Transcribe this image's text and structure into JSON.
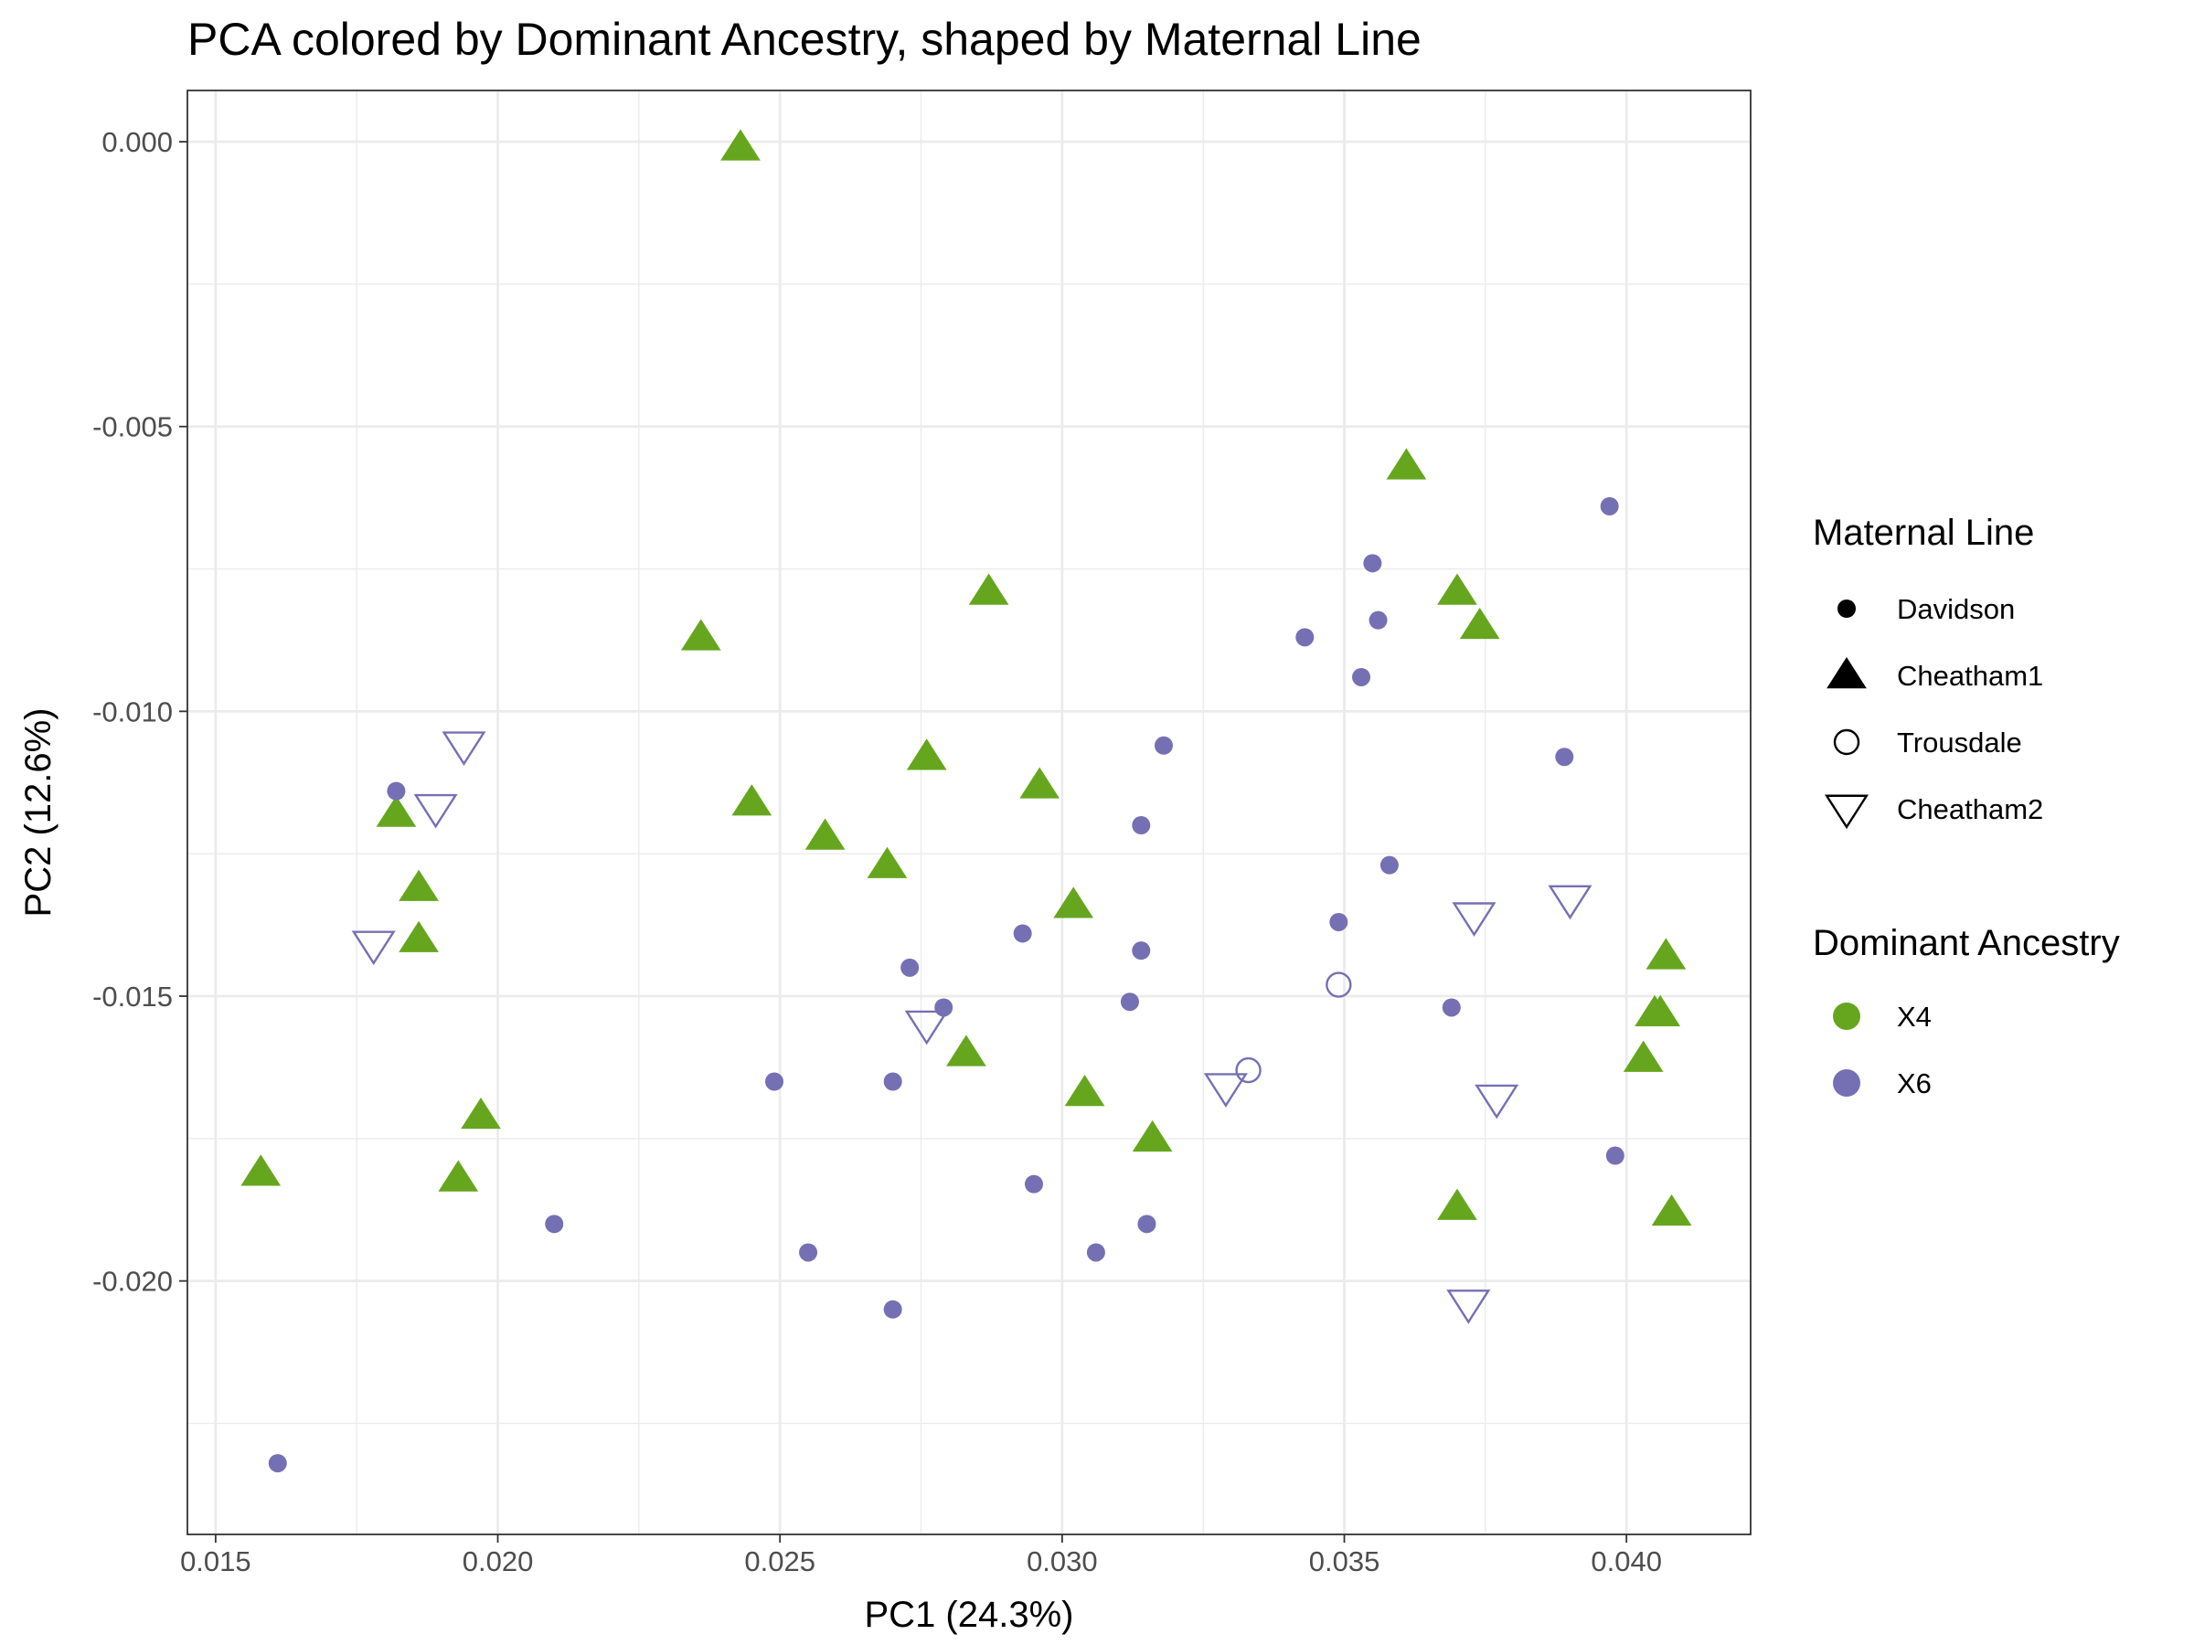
{
  "chart_data": {
    "type": "scatter",
    "title": "PCA colored by Dominant Ancestry, shaped by Maternal Line",
    "xlabel": "PC1 (24.3%)",
    "ylabel": "PC2 (12.6%)",
    "xlim": [
      0.0145,
      0.0422
    ],
    "ylim": [
      -0.02445,
      0.0009
    ],
    "x_ticks": [
      0.015,
      0.02,
      0.025,
      0.03,
      0.035,
      0.04
    ],
    "x_tick_labels": [
      "0.015",
      "0.020",
      "0.025",
      "0.030",
      "0.035",
      "0.040"
    ],
    "y_ticks": [
      0.0,
      -0.005,
      -0.01,
      -0.015,
      -0.02
    ],
    "y_tick_labels": [
      "0.000",
      "-0.005",
      "-0.010",
      "-0.015",
      "-0.020"
    ],
    "grid": true,
    "colors": {
      "X4": "#66a61e",
      "X6": "#7570b3"
    },
    "legend_shape": {
      "title": "Maternal Line",
      "entries": [
        {
          "label": "Davidson",
          "shape": "circle-filled"
        },
        {
          "label": "Cheatham1",
          "shape": "triangle-up-filled"
        },
        {
          "label": "Trousdale",
          "shape": "circle-open"
        },
        {
          "label": "Cheatham2",
          "shape": "triangle-down-open"
        }
      ]
    },
    "legend_color": {
      "title": "Dominant Ancestry",
      "entries": [
        {
          "label": "X4",
          "color": "#66a61e"
        },
        {
          "label": "X6",
          "color": "#7570b3"
        }
      ]
    },
    "legend_position": "right",
    "points": [
      {
        "x": 0.0243,
        "y": -0.0001,
        "shape": "Cheatham1",
        "ancestry": "X4"
      },
      {
        "x": 0.0361,
        "y": -0.0057,
        "shape": "Cheatham1",
        "ancestry": "X4"
      },
      {
        "x": 0.0287,
        "y": -0.0079,
        "shape": "Cheatham1",
        "ancestry": "X4"
      },
      {
        "x": 0.037,
        "y": -0.0079,
        "shape": "Cheatham1",
        "ancestry": "X4"
      },
      {
        "x": 0.0374,
        "y": -0.0085,
        "shape": "Cheatham1",
        "ancestry": "X4"
      },
      {
        "x": 0.0236,
        "y": -0.0087,
        "shape": "Cheatham1",
        "ancestry": "X4"
      },
      {
        "x": 0.0276,
        "y": -0.0108,
        "shape": "Cheatham1",
        "ancestry": "X4"
      },
      {
        "x": 0.0296,
        "y": -0.0113,
        "shape": "Cheatham1",
        "ancestry": "X4"
      },
      {
        "x": 0.0245,
        "y": -0.0116,
        "shape": "Cheatham1",
        "ancestry": "X4"
      },
      {
        "x": 0.0182,
        "y": -0.0118,
        "shape": "Cheatham1",
        "ancestry": "X4"
      },
      {
        "x": 0.0258,
        "y": -0.0122,
        "shape": "Cheatham1",
        "ancestry": "X4"
      },
      {
        "x": 0.0269,
        "y": -0.0127,
        "shape": "Cheatham1",
        "ancestry": "X4"
      },
      {
        "x": 0.0186,
        "y": -0.0131,
        "shape": "Cheatham1",
        "ancestry": "X4"
      },
      {
        "x": 0.0302,
        "y": -0.0134,
        "shape": "Cheatham1",
        "ancestry": "X4"
      },
      {
        "x": 0.0186,
        "y": -0.014,
        "shape": "Cheatham1",
        "ancestry": "X4"
      },
      {
        "x": 0.0407,
        "y": -0.0143,
        "shape": "Cheatham1",
        "ancestry": "X4"
      },
      {
        "x": 0.0406,
        "y": -0.0153,
        "shape": "Cheatham1",
        "ancestry": "X4"
      },
      {
        "x": 0.0405,
        "y": -0.0153,
        "shape": "Cheatham1",
        "ancestry": "X4"
      },
      {
        "x": 0.0283,
        "y": -0.016,
        "shape": "Cheatham1",
        "ancestry": "X4"
      },
      {
        "x": 0.0403,
        "y": -0.0161,
        "shape": "Cheatham1",
        "ancestry": "X4"
      },
      {
        "x": 0.0304,
        "y": -0.0167,
        "shape": "Cheatham1",
        "ancestry": "X4"
      },
      {
        "x": 0.0197,
        "y": -0.0171,
        "shape": "Cheatham1",
        "ancestry": "X4"
      },
      {
        "x": 0.0316,
        "y": -0.0175,
        "shape": "Cheatham1",
        "ancestry": "X4"
      },
      {
        "x": 0.0158,
        "y": -0.0181,
        "shape": "Cheatham1",
        "ancestry": "X4"
      },
      {
        "x": 0.0193,
        "y": -0.0182,
        "shape": "Cheatham1",
        "ancestry": "X4"
      },
      {
        "x": 0.037,
        "y": -0.0187,
        "shape": "Cheatham1",
        "ancestry": "X4"
      },
      {
        "x": 0.0408,
        "y": -0.0188,
        "shape": "Cheatham1",
        "ancestry": "X4"
      },
      {
        "x": 0.0397,
        "y": -0.0064,
        "shape": "Davidson",
        "ancestry": "X6"
      },
      {
        "x": 0.0355,
        "y": -0.0074,
        "shape": "Davidson",
        "ancestry": "X6"
      },
      {
        "x": 0.0356,
        "y": -0.0084,
        "shape": "Davidson",
        "ancestry": "X6"
      },
      {
        "x": 0.0343,
        "y": -0.0087,
        "shape": "Davidson",
        "ancestry": "X6"
      },
      {
        "x": 0.0353,
        "y": -0.0094,
        "shape": "Davidson",
        "ancestry": "X6"
      },
      {
        "x": 0.0318,
        "y": -0.0106,
        "shape": "Davidson",
        "ancestry": "X6"
      },
      {
        "x": 0.0389,
        "y": -0.0108,
        "shape": "Davidson",
        "ancestry": "X6"
      },
      {
        "x": 0.0182,
        "y": -0.0114,
        "shape": "Davidson",
        "ancestry": "X6"
      },
      {
        "x": 0.0314,
        "y": -0.012,
        "shape": "Davidson",
        "ancestry": "X6"
      },
      {
        "x": 0.0358,
        "y": -0.0127,
        "shape": "Davidson",
        "ancestry": "X6"
      },
      {
        "x": 0.0349,
        "y": -0.0137,
        "shape": "Davidson",
        "ancestry": "X6"
      },
      {
        "x": 0.0293,
        "y": -0.0139,
        "shape": "Davidson",
        "ancestry": "X6"
      },
      {
        "x": 0.0314,
        "y": -0.0142,
        "shape": "Davidson",
        "ancestry": "X6"
      },
      {
        "x": 0.0273,
        "y": -0.0145,
        "shape": "Davidson",
        "ancestry": "X6"
      },
      {
        "x": 0.0312,
        "y": -0.0151,
        "shape": "Davidson",
        "ancestry": "X6"
      },
      {
        "x": 0.0279,
        "y": -0.0152,
        "shape": "Davidson",
        "ancestry": "X6"
      },
      {
        "x": 0.0369,
        "y": -0.0152,
        "shape": "Davidson",
        "ancestry": "X6"
      },
      {
        "x": 0.027,
        "y": -0.0165,
        "shape": "Davidson",
        "ancestry": "X6"
      },
      {
        "x": 0.0249,
        "y": -0.0165,
        "shape": "Davidson",
        "ancestry": "X6"
      },
      {
        "x": 0.0398,
        "y": -0.0178,
        "shape": "Davidson",
        "ancestry": "X6"
      },
      {
        "x": 0.0295,
        "y": -0.0183,
        "shape": "Davidson",
        "ancestry": "X6"
      },
      {
        "x": 0.0315,
        "y": -0.019,
        "shape": "Davidson",
        "ancestry": "X6"
      },
      {
        "x": 0.021,
        "y": -0.019,
        "shape": "Davidson",
        "ancestry": "X6"
      },
      {
        "x": 0.0255,
        "y": -0.0195,
        "shape": "Davidson",
        "ancestry": "X6"
      },
      {
        "x": 0.0306,
        "y": -0.0195,
        "shape": "Davidson",
        "ancestry": "X6"
      },
      {
        "x": 0.027,
        "y": -0.0205,
        "shape": "Davidson",
        "ancestry": "X6"
      },
      {
        "x": 0.0161,
        "y": -0.0232,
        "shape": "Davidson",
        "ancestry": "X6"
      },
      {
        "x": 0.0349,
        "y": -0.0148,
        "shape": "Trousdale",
        "ancestry": "X6"
      },
      {
        "x": 0.0333,
        "y": -0.0163,
        "shape": "Trousdale",
        "ancestry": "X6"
      },
      {
        "x": 0.0194,
        "y": -0.0106,
        "shape": "Cheatham2",
        "ancestry": "X6"
      },
      {
        "x": 0.0189,
        "y": -0.0117,
        "shape": "Cheatham2",
        "ancestry": "X6"
      },
      {
        "x": 0.039,
        "y": -0.0133,
        "shape": "Cheatham2",
        "ancestry": "X6"
      },
      {
        "x": 0.0373,
        "y": -0.0136,
        "shape": "Cheatham2",
        "ancestry": "X6"
      },
      {
        "x": 0.0178,
        "y": -0.0141,
        "shape": "Cheatham2",
        "ancestry": "X6"
      },
      {
        "x": 0.0276,
        "y": -0.0155,
        "shape": "Cheatham2",
        "ancestry": "X6"
      },
      {
        "x": 0.0329,
        "y": -0.0166,
        "shape": "Cheatham2",
        "ancestry": "X6"
      },
      {
        "x": 0.0377,
        "y": -0.0168,
        "shape": "Cheatham2",
        "ancestry": "X6"
      },
      {
        "x": 0.0372,
        "y": -0.0204,
        "shape": "Cheatham2",
        "ancestry": "X6"
      }
    ]
  }
}
